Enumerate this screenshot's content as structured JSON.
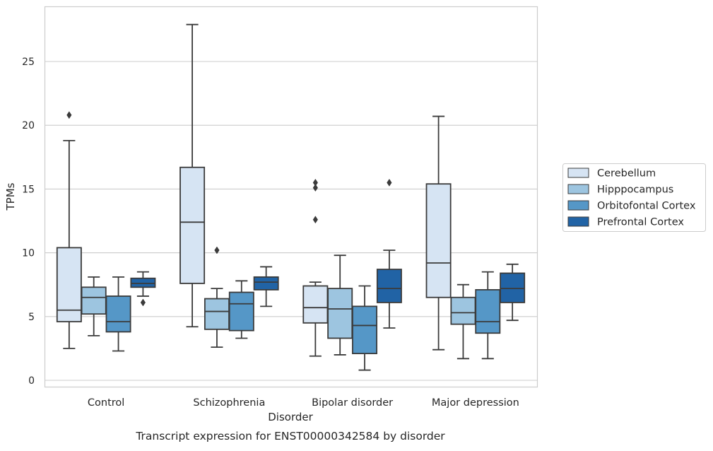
{
  "chart_data": {
    "type": "box",
    "title": "",
    "caption": "Transcript expression for ENST00000342584 by disorder",
    "xlabel": "Disorder",
    "ylabel": "TPMs",
    "ylim": [
      -0.5,
      29
    ],
    "yticks": [
      0,
      5,
      10,
      15,
      20,
      25
    ],
    "grid": "horizontal",
    "legend_position": "right",
    "categories": [
      "Control",
      "Schizophrenia",
      "Bipolar disorder",
      "Major depression"
    ],
    "series": [
      {
        "name": "Cerebellum",
        "color": "#d6e4f3",
        "boxes": [
          {
            "whisker_low": 2.5,
            "q1": 4.6,
            "median": 5.5,
            "q3": 10.4,
            "whisker_high": 18.8,
            "outliers": [
              20.8
            ]
          },
          {
            "whisker_low": 4.2,
            "q1": 7.6,
            "median": 12.4,
            "q3": 16.7,
            "whisker_high": 27.9,
            "outliers": []
          },
          {
            "whisker_low": 1.9,
            "q1": 4.5,
            "median": 5.7,
            "q3": 7.4,
            "whisker_high": 7.7,
            "outliers": [
              12.6,
              15.1,
              15.5
            ]
          },
          {
            "whisker_low": 2.4,
            "q1": 6.5,
            "median": 9.2,
            "q3": 15.4,
            "whisker_high": 20.7,
            "outliers": []
          }
        ]
      },
      {
        "name": "Hipppocampus",
        "color": "#9dc5e0",
        "boxes": [
          {
            "whisker_low": 3.5,
            "q1": 5.2,
            "median": 6.5,
            "q3": 7.3,
            "whisker_high": 8.1,
            "outliers": []
          },
          {
            "whisker_low": 2.6,
            "q1": 4.0,
            "median": 5.4,
            "q3": 6.4,
            "whisker_high": 7.2,
            "outliers": [
              10.2
            ]
          },
          {
            "whisker_low": 2.0,
            "q1": 3.3,
            "median": 5.6,
            "q3": 7.2,
            "whisker_high": 9.8,
            "outliers": []
          },
          {
            "whisker_low": 1.7,
            "q1": 4.4,
            "median": 5.3,
            "q3": 6.5,
            "whisker_high": 7.5,
            "outliers": []
          }
        ]
      },
      {
        "name": "Orbitofontal Cortex",
        "color": "#5597c7",
        "boxes": [
          {
            "whisker_low": 2.3,
            "q1": 3.8,
            "median": 4.6,
            "q3": 6.6,
            "whisker_high": 8.1,
            "outliers": []
          },
          {
            "whisker_low": 3.3,
            "q1": 3.9,
            "median": 6.0,
            "q3": 6.9,
            "whisker_high": 7.8,
            "outliers": []
          },
          {
            "whisker_low": 0.8,
            "q1": 2.1,
            "median": 4.3,
            "q3": 5.8,
            "whisker_high": 7.4,
            "outliers": []
          },
          {
            "whisker_low": 1.7,
            "q1": 3.7,
            "median": 4.6,
            "q3": 7.1,
            "whisker_high": 8.5,
            "outliers": []
          }
        ]
      },
      {
        "name": "Prefrontal Cortex",
        "color": "#2163a5",
        "boxes": [
          {
            "whisker_low": 6.6,
            "q1": 7.3,
            "median": 7.6,
            "q3": 8.0,
            "whisker_high": 8.5,
            "outliers": [
              6.1
            ]
          },
          {
            "whisker_low": 5.8,
            "q1": 7.1,
            "median": 7.7,
            "q3": 8.1,
            "whisker_high": 8.9,
            "outliers": []
          },
          {
            "whisker_low": 4.1,
            "q1": 6.1,
            "median": 7.2,
            "q3": 8.7,
            "whisker_high": 10.2,
            "outliers": [
              15.5
            ]
          },
          {
            "whisker_low": 4.7,
            "q1": 6.1,
            "median": 7.2,
            "q3": 8.4,
            "whisker_high": 9.1,
            "outliers": []
          }
        ]
      }
    ]
  }
}
